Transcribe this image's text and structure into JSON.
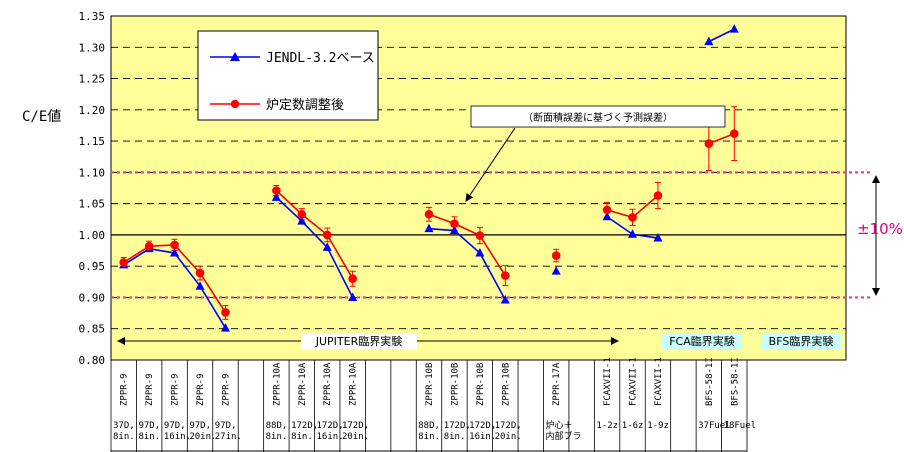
{
  "chart_data": {
    "type": "line",
    "ylabel": "C/E値",
    "ylim": [
      0.8,
      1.35
    ],
    "yticks": [
      "0.80",
      "0.85",
      "0.90",
      "0.95",
      "1.00",
      "1.05",
      "1.10",
      "1.15",
      "1.20",
      "1.25",
      "1.30",
      "1.35"
    ],
    "grid": "dashed horizontal",
    "legend_position": "top-left",
    "categories": [
      {
        "core": "ZPPR-9",
        "detail": [
          "37D,",
          "8in."
        ]
      },
      {
        "core": "ZPPR-9",
        "detail": [
          "97D,",
          "8in."
        ]
      },
      {
        "core": "ZPPR-9",
        "detail": [
          "97D,",
          "16in."
        ]
      },
      {
        "core": "ZPPR-9",
        "detail": [
          "97D,",
          "20in."
        ]
      },
      {
        "core": "ZPPR-9",
        "detail": [
          "97D,",
          "27in."
        ]
      },
      {
        "core": "",
        "detail": [
          "",
          ""
        ]
      },
      {
        "core": "ZPPR-10A",
        "detail": [
          "88D,",
          "8in."
        ]
      },
      {
        "core": "ZPPR-10A",
        "detail": [
          "172D,",
          "8in."
        ]
      },
      {
        "core": "ZPPR-10A",
        "detail": [
          "172D,",
          "16in."
        ]
      },
      {
        "core": "ZPPR-10A",
        "detail": [
          "172D,",
          "20in."
        ]
      },
      {
        "core": "",
        "detail": [
          "",
          ""
        ]
      },
      {
        "core": "",
        "detail": [
          "",
          ""
        ]
      },
      {
        "core": "ZPPR-10B",
        "detail": [
          "88D,",
          "8in."
        ]
      },
      {
        "core": "ZPPR-10B",
        "detail": [
          "172D,",
          "8in."
        ]
      },
      {
        "core": "ZPPR-10B",
        "detail": [
          "172D,",
          "16in."
        ]
      },
      {
        "core": "ZPPR-10B",
        "detail": [
          "172D,",
          "20in."
        ]
      },
      {
        "core": "",
        "detail": [
          "",
          ""
        ]
      },
      {
        "core": "ZPPR-17A",
        "detail": [
          "炉心＋",
          "内部ブラ"
        ]
      },
      {
        "core": "",
        "detail": [
          "",
          ""
        ]
      },
      {
        "core": "FCAXVII-1",
        "detail": [
          "1-2z",
          ""
        ]
      },
      {
        "core": "FCAXVII-1",
        "detail": [
          "1-6z",
          ""
        ]
      },
      {
        "core": "FCAXVII-1",
        "detail": [
          "1-9z",
          ""
        ]
      },
      {
        "core": "",
        "detail": [
          "",
          ""
        ]
      },
      {
        "core": "BFS-58-1I",
        "detail": [
          "37Fuel",
          ""
        ]
      },
      {
        "core": "BFS-58-1I",
        "detail": [
          "18Fuel",
          ""
        ]
      }
    ],
    "series": [
      {
        "name": "JENDL-3.2ベース",
        "color": "#0000ff",
        "marker": "triangle",
        "segments": [
          [
            [
              0,
              0.952
            ],
            [
              1,
              0.978
            ],
            [
              2,
              0.971
            ],
            [
              3,
              0.918
            ],
            [
              4,
              0.851
            ]
          ],
          [
            [
              6,
              1.06
            ],
            [
              7,
              1.022
            ],
            [
              8,
              0.98
            ],
            [
              9,
              0.9
            ]
          ],
          [
            [
              12,
              1.01
            ],
            [
              13,
              1.007
            ],
            [
              14,
              0.971
            ],
            [
              15,
              0.896
            ]
          ],
          [
            [
              17,
              0.942
            ]
          ],
          [
            [
              19,
              1.029
            ],
            [
              20,
              1.001
            ],
            [
              21,
              0.995
            ]
          ],
          [
            [
              23,
              1.309
            ],
            [
              24,
              1.329
            ]
          ]
        ]
      },
      {
        "name": "炉定数調整後",
        "color": "#ff0000",
        "marker": "circle",
        "segments": [
          [
            [
              0,
              0.956,
              0.008
            ],
            [
              1,
              0.982,
              0.008
            ],
            [
              2,
              0.984,
              0.009
            ],
            [
              3,
              0.939,
              0.011
            ],
            [
              4,
              0.876,
              0.011
            ]
          ],
          [
            [
              6,
              1.071,
              0.008
            ],
            [
              7,
              1.033,
              0.009
            ],
            [
              8,
              1.0,
              0.011
            ],
            [
              9,
              0.93,
              0.012
            ]
          ],
          [
            [
              12,
              1.033,
              0.011
            ],
            [
              13,
              1.018,
              0.011
            ],
            [
              14,
              0.999,
              0.013
            ],
            [
              15,
              0.935,
              0.016
            ]
          ],
          [
            [
              17,
              0.967,
              0.01
            ]
          ],
          [
            [
              19,
              1.04,
              0.012
            ],
            [
              20,
              1.028,
              0.013
            ],
            [
              21,
              1.063,
              0.021
            ]
          ],
          [
            [
              23,
              1.146,
              0.043
            ],
            [
              24,
              1.162,
              0.043
            ]
          ]
        ]
      }
    ],
    "reference_lines": [
      1.1,
      0.9
    ],
    "annotations": {
      "callout": "（断面積誤差に基づく予測誤差）",
      "plus_minus": "±10%",
      "groups": [
        "JUPITER臨界実験",
        "FCA臨界実験",
        "BFS臨界実験"
      ]
    }
  },
  "colors": {
    "plot_bg": "#ffff99",
    "group_label_bg": "#ccffff",
    "reference_line": "#ff3399",
    "jendl": "#0000ff",
    "adjusted": "#ff0000"
  }
}
